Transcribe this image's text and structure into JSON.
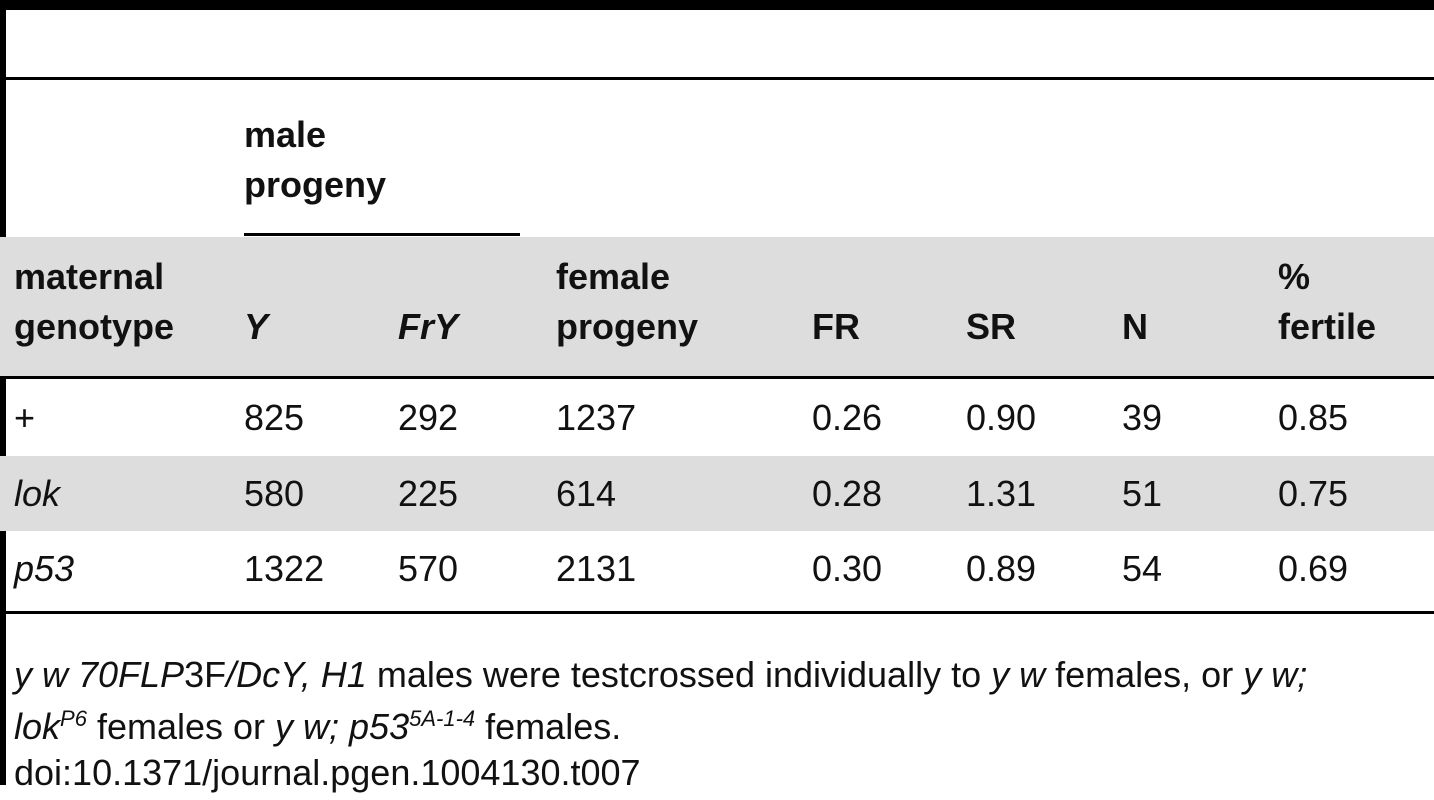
{
  "table": {
    "group_header": [
      "male",
      "progeny"
    ],
    "columns": {
      "maternal": [
        "maternal",
        "genotype"
      ],
      "y": "Y",
      "fry": "FrY",
      "female": [
        "female",
        "progeny"
      ],
      "fr": "FR",
      "sr": "SR",
      "n": "N",
      "fertile": [
        "%",
        "fertile"
      ]
    },
    "rows": [
      {
        "genotype": "+",
        "y": "825",
        "fry": "292",
        "female": "1237",
        "fr": "0.26",
        "sr": "0.90",
        "n": "39",
        "fertile": "0.85"
      },
      {
        "genotype": "lok",
        "y": "580",
        "fry": "225",
        "female": "614",
        "fr": "0.28",
        "sr": "1.31",
        "n": "51",
        "fertile": "0.75"
      },
      {
        "genotype": "p53",
        "y": "1322",
        "fry": "570",
        "female": "2131",
        "fr": "0.30",
        "sr": "0.89",
        "n": "54",
        "fertile": "0.69"
      }
    ]
  },
  "footnote": {
    "l1_a": "y w 70FLP",
    "l1_b": "3F",
    "l1_c": "/DcY, H1",
    "l1_d": " males were testcrossed individually to ",
    "l1_e": "y w",
    "l1_f": " females, or ",
    "l1_g": "y w;",
    "l2_a": "lok",
    "l2_a_sup": "P6",
    "l2_b": " females or ",
    "l2_c": "y w; p53",
    "l2_c_sup": "5A-1-4",
    "l2_d": " females.",
    "doi": "doi:10.1371/journal.pgen.1004130.t007"
  }
}
